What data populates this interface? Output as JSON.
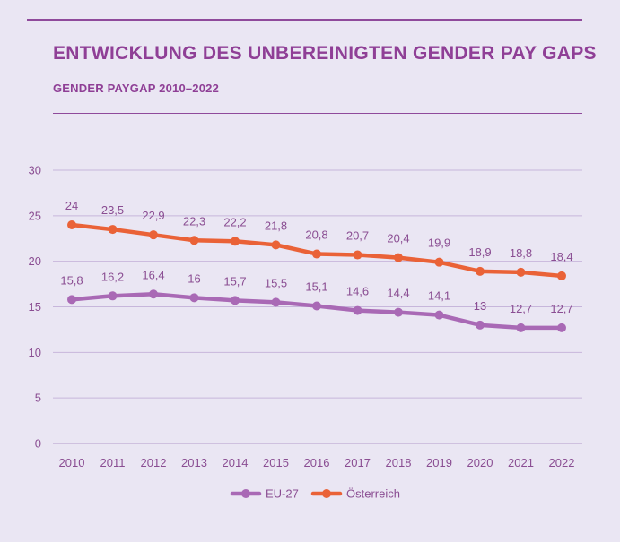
{
  "header": {
    "title": "ENTWICKLUNG DES UNBEREINIGTEN GENDER PAY GAPS",
    "subtitle": "GENDER PAYGAP 2010–2022"
  },
  "colors": {
    "accent": "#8f3f96",
    "eu": "#a969b5",
    "at": "#ea6237",
    "grid": "#c7b6db",
    "axis_text": "#8a4d92"
  },
  "chart_data": {
    "type": "line",
    "title": "ENTWICKLUNG DES UNBEREINIGTEN GENDER PAY GAPS",
    "subtitle": "GENDER PAYGAP 2010–2022",
    "xlabel": "",
    "ylabel": "",
    "ylim": [
      0,
      30
    ],
    "yticks": [
      "0",
      "5",
      "10",
      "15",
      "20",
      "25",
      "30"
    ],
    "grid": true,
    "legend_position": "bottom-center",
    "categories": [
      "2010",
      "2011",
      "2012",
      "2013",
      "2014",
      "2015",
      "2016",
      "2017",
      "2018",
      "2019",
      "2020",
      "2021",
      "2022"
    ],
    "series": [
      {
        "name": "EU-27",
        "values": [
          15.8,
          16.2,
          16.4,
          16,
          15.7,
          15.5,
          15.1,
          14.6,
          14.4,
          14.1,
          13,
          12.7,
          12.7
        ],
        "labels": [
          "15,8",
          "16,2",
          "16,4",
          "16",
          "15,7",
          "15,5",
          "15,1",
          "14,6",
          "14,4",
          "14,1",
          "13",
          "12,7",
          "12,7"
        ]
      },
      {
        "name": "Österreich",
        "values": [
          24,
          23.5,
          22.9,
          22.3,
          22.2,
          21.8,
          20.8,
          20.7,
          20.4,
          19.9,
          18.9,
          18.8,
          18.4
        ],
        "labels": [
          "24",
          "23,5",
          "22,9",
          "22,3",
          "22,2",
          "21,8",
          "20,8",
          "20,7",
          "20,4",
          "19,9",
          "18,9",
          "18,8",
          "18,4"
        ]
      }
    ]
  }
}
